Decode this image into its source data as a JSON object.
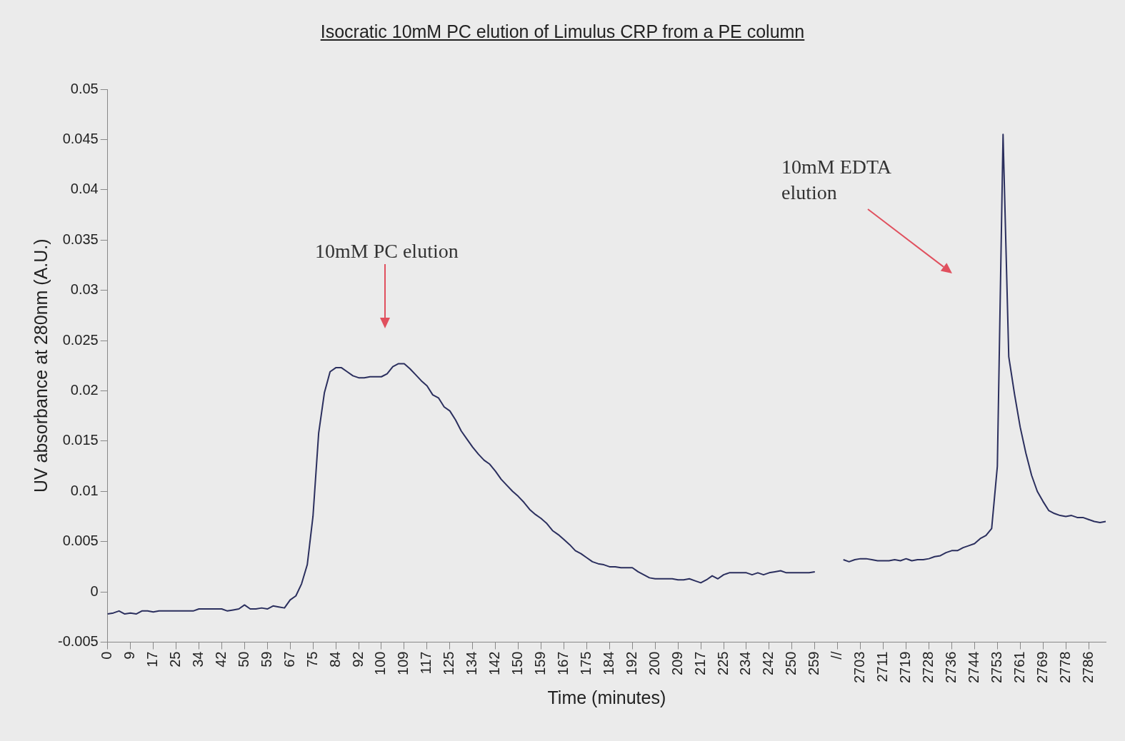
{
  "chart_data": {
    "type": "line",
    "title": "Isocratic 10mM PC elution of Limulus CRP from a PE column",
    "xlabel": "Time (minutes)",
    "ylabel": "UV absorbance at 280nm (A.U.)",
    "categories": [
      "0",
      null,
      null,
      null,
      "9",
      null,
      null,
      null,
      "17",
      null,
      null,
      null,
      "25",
      null,
      null,
      null,
      "34",
      null,
      null,
      null,
      "42",
      null,
      null,
      null,
      "50",
      null,
      null,
      null,
      "59",
      null,
      null,
      null,
      "67",
      null,
      null,
      null,
      "75",
      null,
      null,
      null,
      "84",
      null,
      null,
      null,
      "92",
      null,
      null,
      null,
      "100",
      null,
      null,
      null,
      "109",
      null,
      null,
      null,
      "117",
      null,
      null,
      null,
      "125",
      null,
      null,
      null,
      "134",
      null,
      null,
      null,
      "142",
      null,
      null,
      null,
      "150",
      null,
      null,
      null,
      "159",
      null,
      null,
      null,
      "167",
      null,
      null,
      null,
      "175",
      null,
      null,
      null,
      "184",
      null,
      null,
      null,
      "192",
      null,
      null,
      null,
      "200",
      null,
      null,
      null,
      "209",
      null,
      null,
      null,
      "217",
      null,
      null,
      null,
      "225",
      null,
      null,
      null,
      "234",
      null,
      null,
      null,
      "242",
      null,
      null,
      null,
      "250",
      null,
      null,
      null,
      "259",
      null,
      null,
      null,
      "//",
      null,
      null,
      null,
      "2703",
      null,
      null,
      null,
      "2711",
      null,
      null,
      null,
      "2719",
      null,
      null,
      null,
      "2728",
      null,
      null,
      null,
      "2736",
      null,
      null,
      null,
      "2744",
      null,
      null,
      null,
      "2753",
      null,
      null,
      null,
      "2761",
      null,
      null,
      null,
      "2769",
      null,
      null,
      null,
      "2778",
      null,
      null,
      null,
      "2786",
      null,
      null,
      null
    ],
    "values": [
      -0.0022,
      -0.0021,
      -0.0019,
      -0.0022,
      -0.0021,
      -0.0022,
      -0.0019,
      -0.0019,
      -0.002,
      -0.0019,
      -0.0019,
      -0.0019,
      -0.0019,
      -0.0019,
      -0.0019,
      -0.0019,
      -0.0017,
      -0.0017,
      -0.0017,
      -0.0017,
      -0.0017,
      -0.0019,
      -0.0018,
      -0.0017,
      -0.0013,
      -0.0017,
      -0.0017,
      -0.0016,
      -0.0017,
      -0.0014,
      -0.0015,
      -0.0016,
      -0.0008,
      -0.0004,
      0.0008,
      0.0027,
      0.0075,
      0.0158,
      0.0198,
      0.0219,
      0.0223,
      0.0223,
      0.0219,
      0.0215,
      0.0213,
      0.0213,
      0.0214,
      0.0214,
      0.0214,
      0.0217,
      0.0224,
      0.0227,
      0.0227,
      0.0222,
      0.0216,
      0.021,
      0.0205,
      0.0196,
      0.0193,
      0.0184,
      0.018,
      0.0171,
      0.016,
      0.0152,
      0.0144,
      0.0137,
      0.0131,
      0.0127,
      0.012,
      0.0112,
      0.0106,
      0.01,
      0.0095,
      0.0089,
      0.0082,
      0.0077,
      0.0073,
      0.0068,
      0.0061,
      0.0057,
      0.0052,
      0.0047,
      0.0041,
      0.0038,
      0.0034,
      0.003,
      0.0028,
      0.0027,
      0.0025,
      0.0025,
      0.0024,
      0.0024,
      0.0024,
      0.002,
      0.0017,
      0.0014,
      0.0013,
      0.0013,
      0.0013,
      0.0013,
      0.0012,
      0.0012,
      0.0013,
      0.0011,
      0.0009,
      0.0012,
      0.0016,
      0.0013,
      0.0017,
      0.0019,
      0.0019,
      0.0019,
      0.0019,
      0.0017,
      0.0019,
      0.0017,
      0.0019,
      0.002,
      0.0021,
      0.0019,
      0.0019,
      0.0019,
      0.0019,
      0.0019,
      0.002,
      null,
      null,
      null,
      null,
      0.0032,
      0.003,
      0.0032,
      0.0033,
      0.0033,
      0.0032,
      0.0031,
      0.0031,
      0.0031,
      0.0032,
      0.0031,
      0.0033,
      0.0031,
      0.0032,
      0.0032,
      0.0033,
      0.0035,
      0.0036,
      0.0039,
      0.0041,
      0.0041,
      0.0044,
      0.0046,
      0.0048,
      0.0053,
      0.0056,
      0.0063,
      0.0125,
      0.0455,
      0.0234,
      0.0197,
      0.0164,
      0.0138,
      0.0116,
      0.01,
      0.009,
      0.0081,
      0.0078,
      0.0076,
      0.0075,
      0.0076,
      0.0074,
      0.0074,
      0.0072,
      0.007,
      0.0069,
      0.007
    ],
    "color": "#2b2f5e",
    "ylim": [
      -0.005,
      0.05
    ],
    "yticks": [
      -0.005,
      0,
      0.005,
      0.01,
      0.015,
      0.02,
      0.025,
      0.03,
      0.035,
      0.04,
      0.045,
      0.05
    ],
    "annotations": [
      "10mM PC elution",
      "10mM EDTA\nelution"
    ]
  }
}
